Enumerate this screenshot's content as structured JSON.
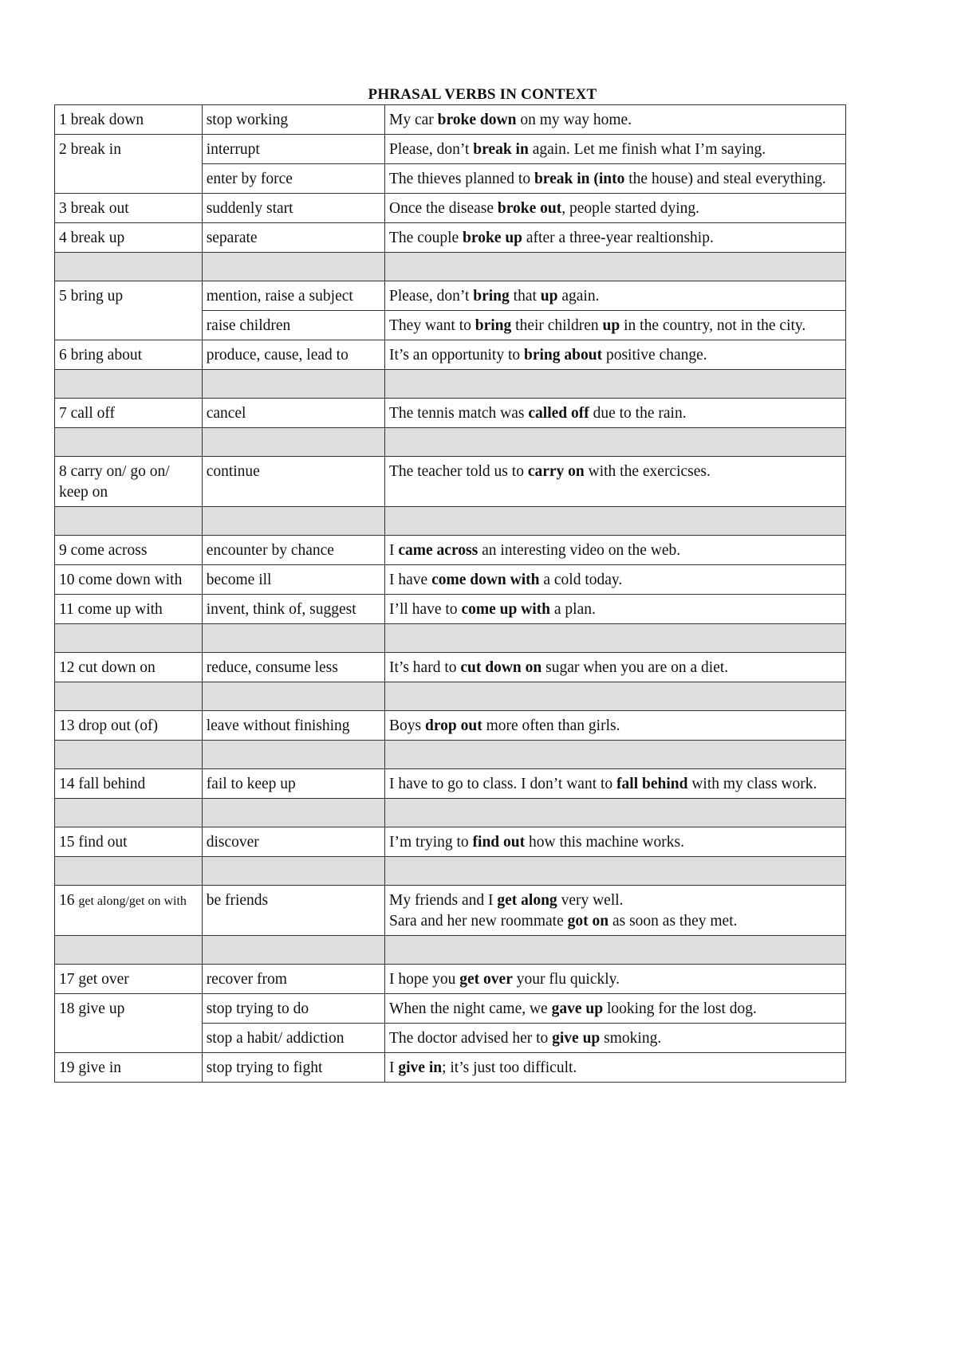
{
  "title": "PHRASAL VERBS IN CONTEXT",
  "colors": {
    "border": "#333333",
    "blank_row": "#dedede"
  },
  "rows": [
    {
      "num": "1",
      "verb": "break down",
      "senses": [
        {
          "meaning": "stop working",
          "example": [
            {
              "t": "My car "
            },
            {
              "t": "broke down",
              "b": true
            },
            {
              "t": " on my way home."
            }
          ]
        }
      ]
    },
    {
      "num": "2",
      "verb": "break in",
      "senses": [
        {
          "meaning": "interrupt",
          "example": [
            {
              "t": "Please, don’t "
            },
            {
              "t": "break in",
              "b": true
            },
            {
              "t": " again. Let me finish what I’m saying."
            }
          ]
        },
        {
          "meaning": "enter by force",
          "example": [
            {
              "t": "The thieves planned to "
            },
            {
              "t": "break in (into",
              "b": true
            },
            {
              "t": " the house) and steal everything."
            }
          ]
        }
      ]
    },
    {
      "num": "3",
      "verb": "break out",
      "senses": [
        {
          "meaning": "suddenly start",
          "example": [
            {
              "t": "Once the disease "
            },
            {
              "t": "broke out",
              "b": true
            },
            {
              "t": ", people started dying."
            }
          ]
        }
      ]
    },
    {
      "num": "4",
      "verb": "break up",
      "senses": [
        {
          "meaning": "separate",
          "example": [
            {
              "t": "The couple "
            },
            {
              "t": "broke up",
              "b": true
            },
            {
              "t": " after a three-year realtionship."
            }
          ]
        }
      ]
    },
    {
      "blank": true
    },
    {
      "num": "5",
      "verb": "bring up",
      "senses": [
        {
          "meaning": "mention, raise a subject",
          "example": [
            {
              "t": "Please, don’t "
            },
            {
              "t": "bring",
              "b": true
            },
            {
              "t": " that "
            },
            {
              "t": "up",
              "b": true
            },
            {
              "t": " again."
            }
          ]
        },
        {
          "meaning": "raise children",
          "example": [
            {
              "t": "They want to "
            },
            {
              "t": "bring",
              "b": true
            },
            {
              "t": " their children "
            },
            {
              "t": "up",
              "b": true
            },
            {
              "t": " in the country, not in the city."
            }
          ]
        }
      ]
    },
    {
      "num": "6",
      "verb": "bring about",
      "senses": [
        {
          "meaning": "produce, cause, lead to",
          "example": [
            {
              "t": "It’s an opportunity to "
            },
            {
              "t": "bring about",
              "b": true
            },
            {
              "t": " positive change."
            }
          ]
        }
      ]
    },
    {
      "blank": true
    },
    {
      "num": "7",
      "verb": "call off",
      "senses": [
        {
          "meaning": "cancel",
          "example": [
            {
              "t": "The tennis match was "
            },
            {
              "t": "called off",
              "b": true
            },
            {
              "t": " due to the rain."
            }
          ]
        }
      ]
    },
    {
      "blank": true
    },
    {
      "num": "8",
      "verb": "carry on/ go on/ keep on",
      "senses": [
        {
          "meaning": "continue",
          "example": [
            {
              "t": "The teacher told us to "
            },
            {
              "t": "carry on",
              "b": true
            },
            {
              "t": " with the exercicses."
            }
          ]
        }
      ]
    },
    {
      "blank": true
    },
    {
      "num": "9",
      "verb": "come across",
      "senses": [
        {
          "meaning": "encounter by chance",
          "example": [
            {
              "t": "I "
            },
            {
              "t": "came across",
              "b": true
            },
            {
              "t": " an interesting video on the web."
            }
          ]
        }
      ]
    },
    {
      "num": "10",
      "verb": "come down with",
      "senses": [
        {
          "meaning": "become ill",
          "example": [
            {
              "t": "I have "
            },
            {
              "t": "come down with",
              "b": true
            },
            {
              "t": " a cold today."
            }
          ]
        }
      ]
    },
    {
      "num": "11",
      "verb": "come up with",
      "senses": [
        {
          "meaning": "invent, think of, suggest",
          "example": [
            {
              "t": "I’ll have to "
            },
            {
              "t": "come up with",
              "b": true
            },
            {
              "t": " a plan."
            }
          ]
        }
      ]
    },
    {
      "blank": true
    },
    {
      "num": "12",
      "verb": "cut down on",
      "senses": [
        {
          "meaning": "reduce, consume less",
          "example": [
            {
              "t": "It’s hard to "
            },
            {
              "t": "cut down on",
              "b": true
            },
            {
              "t": " sugar when you are on a diet."
            }
          ]
        }
      ]
    },
    {
      "blank": true
    },
    {
      "num": "13",
      "verb": "drop out (of)",
      "senses": [
        {
          "meaning": "leave without finishing",
          "example": [
            {
              "t": "Boys "
            },
            {
              "t": "drop out",
              "b": true
            },
            {
              "t": " more often than girls."
            }
          ]
        }
      ]
    },
    {
      "blank": true
    },
    {
      "num": "14",
      "verb": "fall behind",
      "senses": [
        {
          "meaning": "fail to keep up",
          "example": [
            {
              "t": "I have to go to class. I don’t want to "
            },
            {
              "t": "fall behind",
              "b": true
            },
            {
              "t": " with my class work."
            }
          ]
        }
      ]
    },
    {
      "blank": true
    },
    {
      "num": "15",
      "verb": "find out",
      "senses": [
        {
          "meaning": "discover",
          "example": [
            {
              "t": "I’m trying to "
            },
            {
              "t": "find out",
              "b": true
            },
            {
              "t": " how this machine works."
            }
          ]
        }
      ]
    },
    {
      "blank": true
    },
    {
      "num": "16",
      "verb": "get along/get on with",
      "verb_small": true,
      "senses": [
        {
          "meaning": "be friends",
          "example": [
            {
              "t": "My friends and I "
            },
            {
              "t": "get along",
              "b": true
            },
            {
              "t": " very well.\nSara and her new roommate "
            },
            {
              "t": "got on",
              "b": true
            },
            {
              "t": " as soon as they met."
            }
          ]
        }
      ]
    },
    {
      "blank": true
    },
    {
      "num": "17",
      "verb": "get over",
      "senses": [
        {
          "meaning": "recover from",
          "example": [
            {
              "t": "I hope you "
            },
            {
              "t": "get over",
              "b": true
            },
            {
              "t": " your flu quickly."
            }
          ]
        }
      ]
    },
    {
      "num": "18",
      "verb": "give up",
      "senses": [
        {
          "meaning": "stop trying to do",
          "example": [
            {
              "t": "When the night came, we "
            },
            {
              "t": "gave up",
              "b": true
            },
            {
              "t": " looking for the lost dog."
            }
          ]
        },
        {
          "meaning": "stop a habit/ addiction",
          "example": [
            {
              "t": "The doctor advised her to "
            },
            {
              "t": "give up",
              "b": true
            },
            {
              "t": " smoking."
            }
          ]
        }
      ]
    },
    {
      "num": "19",
      "verb": "give in",
      "senses": [
        {
          "meaning": "stop trying to fight",
          "example": [
            {
              "t": "I "
            },
            {
              "t": "give in",
              "b": true
            },
            {
              "t": "; it’s just too difficult."
            }
          ]
        }
      ]
    }
  ]
}
